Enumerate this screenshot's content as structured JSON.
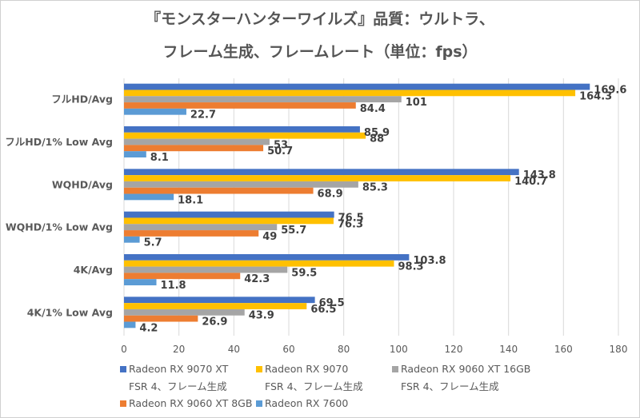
{
  "chart_data": {
    "type": "bar",
    "orientation": "horizontal",
    "title": "『モンスターハンターワイルズ』品質：ウルトラ、フレーム生成、フレームレート（単位：fps）",
    "title_lines": [
      "『モンスターハンターワイルズ』品質：ウルトラ、",
      "フレーム生成、フレームレート（単位：fps）"
    ],
    "xlabel": "",
    "ylabel": "",
    "xlim": [
      0,
      180
    ],
    "xticks": [
      0,
      20,
      40,
      60,
      80,
      100,
      120,
      140,
      160,
      180
    ],
    "grid": true,
    "legend_position": "bottom",
    "categories": [
      "フルHD/Avg",
      "フルHD/1% Low  Avg",
      "WQHD/Avg",
      "WQHD/1% Low  Avg",
      "4K/Avg",
      "4K/1% Low Avg"
    ],
    "series": [
      {
        "name": "Radeon RX 9070 XT",
        "sub": "FSR 4、フレーム生成",
        "color": "#4472c4",
        "values": [
          169.6,
          85.9,
          143.8,
          76.5,
          103.8,
          69.5
        ]
      },
      {
        "name": "Radeon RX 9070",
        "sub": "FSR 4、フレーム生成",
        "color": "#ffc000",
        "values": [
          164.3,
          88,
          140.7,
          76.3,
          98.3,
          66.5
        ]
      },
      {
        "name": "Radeon RX 9060 XT 16GB",
        "sub": "FSR 4、フレーム生成",
        "color": "#a5a5a5",
        "values": [
          101,
          53,
          85.3,
          55.7,
          59.5,
          43.9
        ]
      },
      {
        "name": "Radeon RX 9060 XT 8GB",
        "sub": "",
        "color": "#ed7d31",
        "values": [
          84.4,
          50.7,
          68.9,
          49,
          42.3,
          26.9
        ]
      },
      {
        "name": "Radeon RX 7600",
        "sub": "",
        "color": "#5b9bd5",
        "values": [
          22.7,
          8.1,
          18.1,
          5.7,
          11.8,
          4.2
        ]
      }
    ]
  }
}
